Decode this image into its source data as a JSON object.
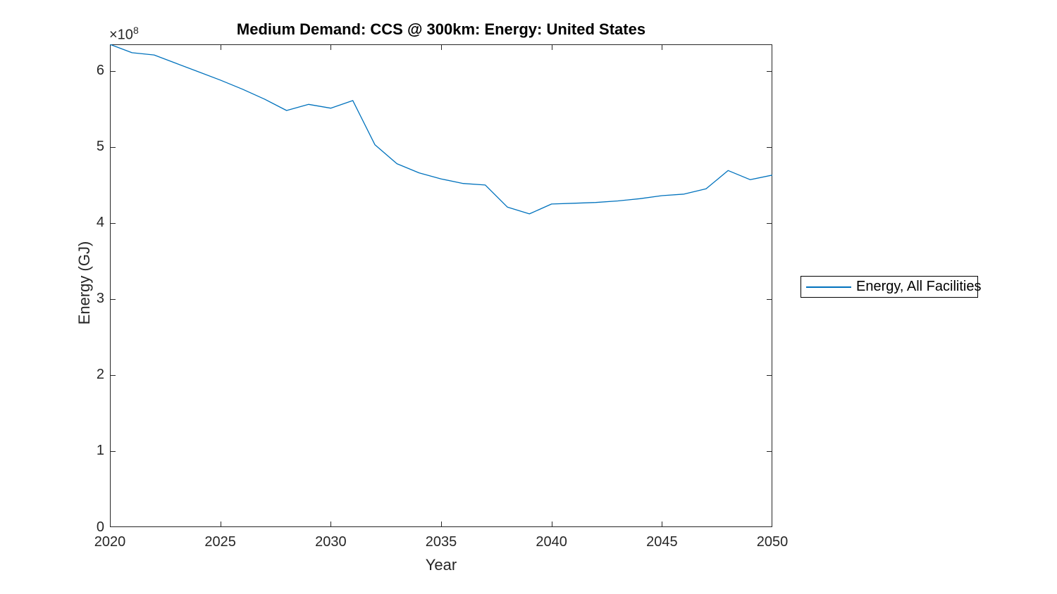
{
  "figure": {
    "background": "#ffffff",
    "axis_color": "#262626",
    "tick_text_color": "#262626",
    "title_color": "#000000"
  },
  "chart_data": {
    "type": "line",
    "title": "Medium Demand: CCS @ 300km: Energy: United States",
    "xlabel": "Year",
    "ylabel": "Energy (GJ)",
    "y_axis_multiplier": {
      "base": "×10",
      "exponent": "8"
    },
    "xlim": [
      2020,
      2050
    ],
    "ylim": [
      0,
      635000000
    ],
    "x_ticks": [
      2020,
      2025,
      2030,
      2035,
      2040,
      2045,
      2050
    ],
    "y_ticks": {
      "values": [
        0,
        100000000,
        200000000,
        300000000,
        400000000,
        500000000,
        600000000
      ],
      "labels": [
        "0",
        "1",
        "2",
        "3",
        "4",
        "5",
        "6"
      ]
    },
    "grid": false,
    "box": true,
    "tick_direction": "in",
    "legend": {
      "position": "outside-right",
      "border": true
    },
    "x": [
      2020,
      2021,
      2022,
      2023,
      2024,
      2025,
      2026,
      2027,
      2028,
      2029,
      2030,
      2031,
      2032,
      2033,
      2034,
      2035,
      2036,
      2037,
      2038,
      2039,
      2040,
      2041,
      2042,
      2043,
      2044,
      2045,
      2046,
      2047,
      2048,
      2049,
      2050
    ],
    "series": [
      {
        "name": "Energy, All Facilities",
        "color": "#0072BD",
        "values": [
          635000000,
          624000000,
          621000000,
          610000000,
          599000000,
          588000000,
          576000000,
          563000000,
          548000000,
          556000000,
          551000000,
          561000000,
          503000000,
          478000000,
          466000000,
          458000000,
          452000000,
          450000000,
          421000000,
          412000000,
          425000000,
          426000000,
          427000000,
          429000000,
          432000000,
          436000000,
          438000000,
          445000000,
          469000000,
          457000000,
          463000000
        ]
      }
    ]
  }
}
